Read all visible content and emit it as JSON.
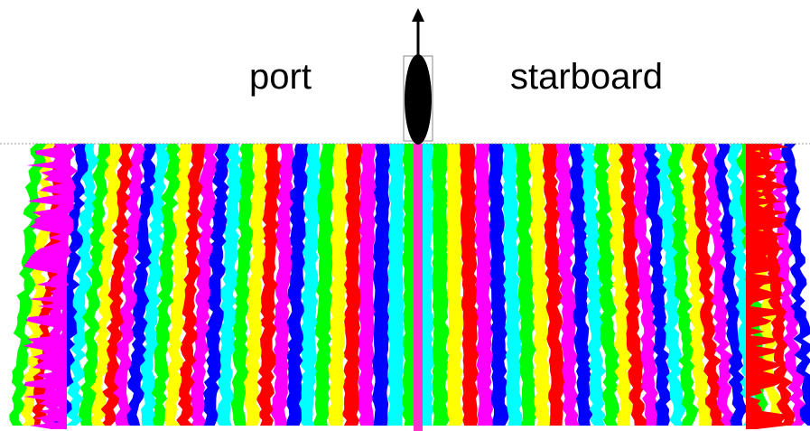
{
  "labels": {
    "port": "port",
    "starboard": "starboard"
  },
  "heading_arrow_icon": "arrow-up-icon",
  "vessel_icon": "boat-hull-icon",
  "stripe_palette": [
    "#ff00ff",
    "#ff0000",
    "#ffff00",
    "#00ff00",
    "#00ffff",
    "#0000ff"
  ],
  "colors": {
    "centerline": "#ff33cc",
    "baseline": "#9a9a9a",
    "hull": "#000000"
  }
}
